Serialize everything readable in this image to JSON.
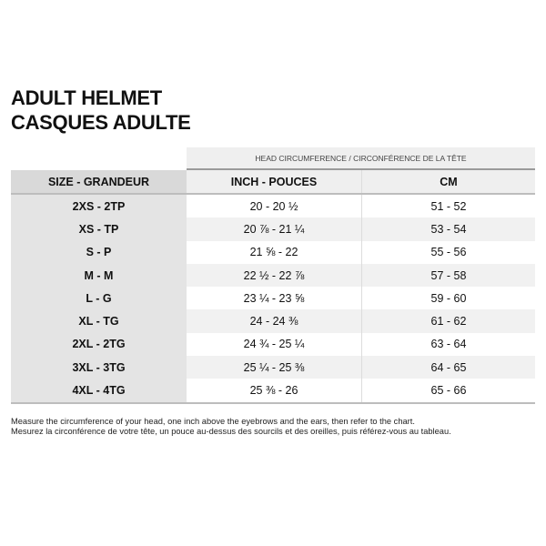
{
  "title": [
    "ADULT HELMET",
    "CASQUES ADULTE"
  ],
  "band_label": "HEAD CIRCUMFERENCE / CIRCONFÉRENCE DE LA TÊTE",
  "headers": [
    "SIZE - GRANDEUR",
    "INCH - POUCES",
    "CM"
  ],
  "rows": [
    {
      "size": "2XS - 2TP",
      "inch": "20 - 20 ½",
      "cm": "51 - 52"
    },
    {
      "size": "XS - TP",
      "inch": "20 ⅞ - 21 ¼",
      "cm": "53 - 54"
    },
    {
      "size": "S - P",
      "inch": "21 ⅝ - 22",
      "cm": "55 - 56"
    },
    {
      "size": "M - M",
      "inch": "22 ½ - 22 ⅞",
      "cm": "57 - 58"
    },
    {
      "size": "L - G",
      "inch": "23 ¼ - 23 ⅝",
      "cm": "59 - 60"
    },
    {
      "size": "XL - TG",
      "inch": "24 - 24 ⅜",
      "cm": "61 - 62"
    },
    {
      "size": "2XL - 2TG",
      "inch": "24 ¾ - 25 ¼",
      "cm": "63 - 64"
    },
    {
      "size": "3XL - 3TG",
      "inch": "25 ¼ - 25 ⅜",
      "cm": "64 - 65"
    },
    {
      "size": "4XL - 4TG",
      "inch": "25 ⅜ - 26",
      "cm": "65 - 66"
    }
  ],
  "notes": [
    "Measure the circumference of your head, one inch above the eyebrows and the ears, then refer to the chart.",
    "Mesurez la circonférence de votre tête, un pouce au-dessus des sourcils et des oreilles, puis référez-vous au tableau."
  ]
}
